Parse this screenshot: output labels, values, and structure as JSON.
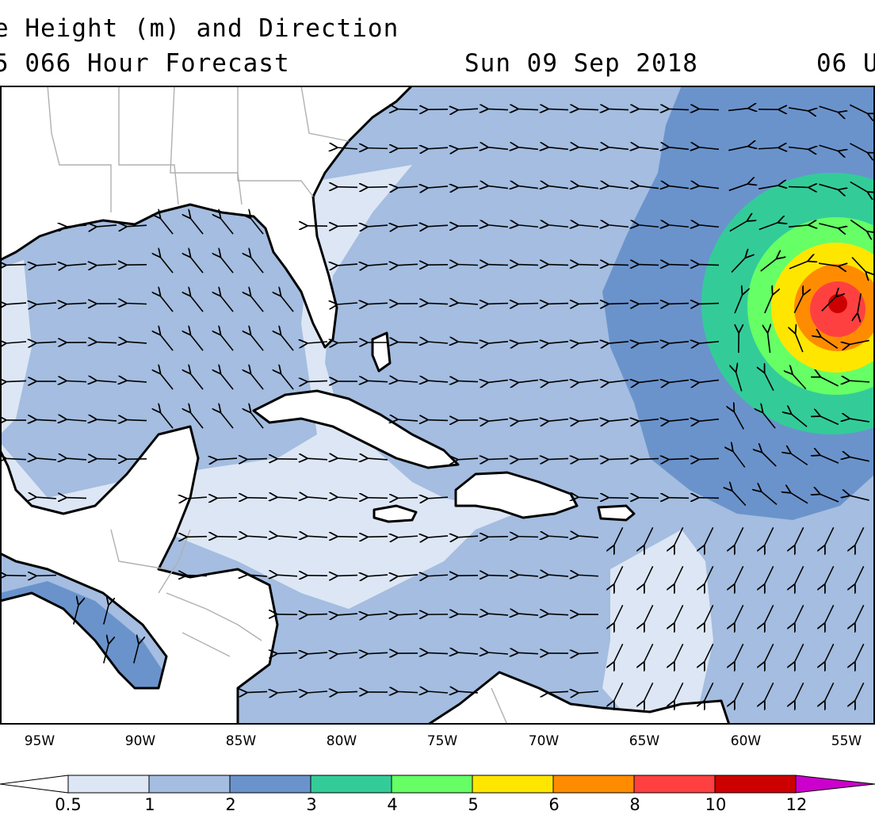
{
  "header": {
    "title_line1": "e Height (m) and Direction",
    "title_line2": "5 066 Hour Forecast",
    "valid_date": "Sun 09 Sep 2018",
    "valid_time": "06 U"
  },
  "axis": {
    "longitude_labels": [
      "95W",
      "90W",
      "85W",
      "80W",
      "75W",
      "70W",
      "65W",
      "60W",
      "55W"
    ]
  },
  "legend": {
    "labels": [
      "0.5",
      "1",
      "2",
      "3",
      "4",
      "5",
      "6",
      "8",
      "10",
      "12"
    ],
    "colors": [
      "#ffffff",
      "#dde6f4",
      "#a4bde0",
      "#6a93cc",
      "#33cc99",
      "#66ff66",
      "#ffe600",
      "#ff8c00",
      "#ff4040",
      "#cc0000",
      "#cc00cc"
    ]
  },
  "colors": {
    "land": "#ffffff",
    "coast": "#000000",
    "border": "#b0b0b0",
    "frame": "#000000"
  }
}
